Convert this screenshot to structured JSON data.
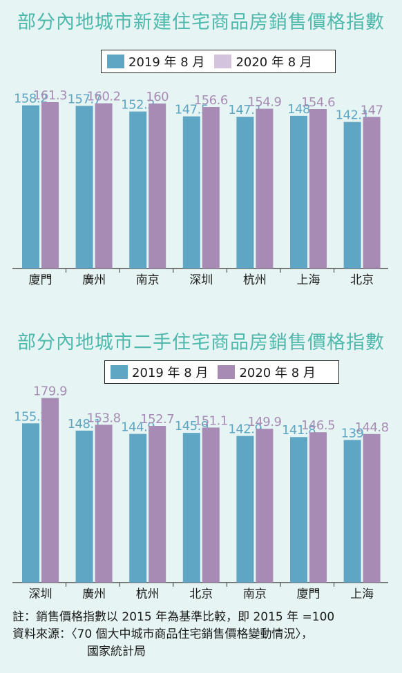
{
  "colors": {
    "background": "#e6f5f3",
    "title": "#4fb8ad",
    "series_2019": "#5ea6c4",
    "series_2020_chart1": "#d3c3dd",
    "series_2020_chart2": "#a78bb4",
    "bar_2020": "#a78bb4",
    "label_2020": "#a78bb4"
  },
  "chart_data": [
    {
      "type": "bar",
      "title": "部分內地城市新建住宅商品房銷售價格指數",
      "categories": [
        "廈門",
        "廣州",
        "南京",
        "深圳",
        "杭州",
        "上海",
        "北京"
      ],
      "series": [
        {
          "name": "2019 年 8 月",
          "values": [
            158.2,
            157.7,
            152.2,
            147.5,
            147.1,
            148,
            142.1
          ]
        },
        {
          "name": "2020 年 8 月",
          "values": [
            161.3,
            160.2,
            160,
            156.6,
            154.9,
            154.6,
            147
          ]
        }
      ],
      "legend": "top-center",
      "grid": false,
      "ylim": [
        0,
        170
      ]
    },
    {
      "type": "bar",
      "title": "部分內地城市二手住宅商品房銷售價格指數",
      "categories": [
        "深圳",
        "廣州",
        "杭州",
        "北京",
        "南京",
        "廈門",
        "上海"
      ],
      "series": [
        {
          "name": "2019 年 8 月",
          "values": [
            155.2,
            148.1,
            144.9,
            145.9,
            142.9,
            141.8,
            139
          ]
        },
        {
          "name": "2020 年 8 月",
          "values": [
            179.9,
            153.8,
            152.7,
            151.1,
            149.9,
            146.5,
            144.8
          ]
        }
      ],
      "legend": "top-center",
      "grid": false,
      "ylim": [
        0,
        185
      ]
    }
  ],
  "notes": {
    "line1": "註：銷售價格指數以 2015 年為基準比較，即 2015 年 =100",
    "line2": "資料來源：〈70 個大中城市商品住宅銷售價格變動情況〉，",
    "line3": "國家統計局"
  }
}
